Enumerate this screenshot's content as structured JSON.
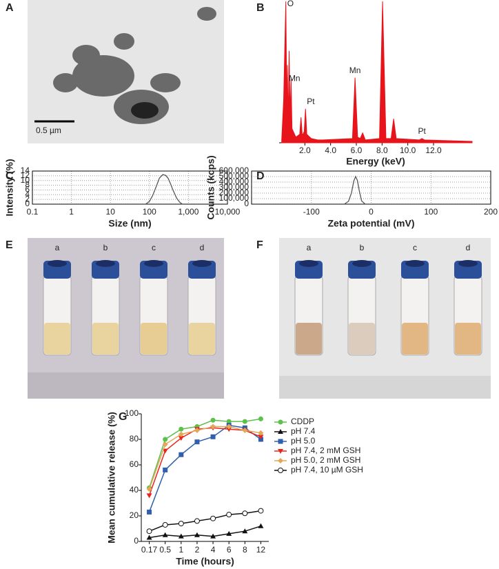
{
  "images": [
    {
      "label": "A",
      "scale_bar": "0.5 µm"
    },
    {
      "label": "E",
      "vials": [
        "a",
        "b",
        "c",
        "d"
      ]
    },
    {
      "label": "F",
      "vials": [
        "a",
        "b",
        "c",
        "d"
      ]
    }
  ],
  "chart_data": [
    {
      "type": "area",
      "label": "B",
      "xlabel": "Energy (keV)",
      "color": "#e8141c",
      "x": [
        0.2,
        0.35,
        0.52,
        0.6,
        0.64,
        0.7,
        0.78,
        0.85,
        0.93,
        1.0,
        1.3,
        1.6,
        1.7,
        1.8,
        1.95,
        2.05,
        2.15,
        2.5,
        3.0,
        3.4,
        5.7,
        5.9,
        6.1,
        6.3,
        6.49,
        6.7,
        7.8,
        8.04,
        8.3,
        8.7,
        8.9,
        9.1,
        10.9,
        11.1,
        11.3,
        15
      ],
      "values": [
        2,
        30,
        100,
        20,
        55,
        15,
        65,
        20,
        45,
        10,
        4,
        6,
        18,
        5,
        8,
        24,
        6,
        3,
        2,
        2,
        3,
        46,
        4,
        3,
        7,
        2,
        3,
        100,
        3,
        3,
        17,
        3,
        2,
        3,
        2,
        1
      ],
      "xlim": [
        0,
        15
      ],
      "ylim": [
        0,
        100
      ],
      "xticks": [
        {
          "value": 2,
          "label": "2.0"
        },
        {
          "value": 4,
          "label": "4.0"
        },
        {
          "value": 6,
          "label": "6.0"
        },
        {
          "value": 8,
          "label": "8.0"
        },
        {
          "value": 10,
          "label": "10.0"
        },
        {
          "value": 12,
          "label": "12.0"
        }
      ],
      "annotations": [
        "O",
        "Mn",
        "Pt",
        "Mn",
        "Pt"
      ]
    },
    {
      "type": "line",
      "label": "C",
      "xlabel": "Size (nm)",
      "ylabel": "Intensity (%)",
      "color": "#555555",
      "xscale": "log",
      "grid": true,
      "x": [
        80,
        100,
        120,
        150,
        180,
        220,
        260,
        300,
        350,
        400,
        500,
        600,
        700
      ],
      "values": [
        0,
        1.2,
        3.5,
        7.5,
        11,
        12.5,
        12.2,
        11,
        8.5,
        6,
        2.5,
        0.8,
        0
      ],
      "xlim": [
        0.1,
        10000
      ],
      "ylim": [
        0,
        14
      ],
      "xticks": [
        0.1,
        1,
        10,
        100,
        {
          "value": 1000,
          "label": "1,000"
        },
        {
          "value": 10000,
          "label": "10,000"
        }
      ],
      "yticks": [
        0,
        2,
        4,
        6,
        8,
        10,
        12,
        14
      ]
    },
    {
      "type": "line",
      "label": "D",
      "xlabel": "Zeta potential (mV)",
      "ylabel": "Counts (kcps)",
      "color": "#555555",
      "grid": true,
      "x": [
        -45,
        -38,
        -33,
        -29,
        -26,
        -23,
        -20,
        -16,
        -10
      ],
      "values": [
        0,
        50000,
        200000,
        420000,
        500000,
        430000,
        250000,
        60000,
        0
      ],
      "xlim": [
        -200,
        200
      ],
      "ylim": [
        0,
        600000
      ],
      "xticks": [
        -100,
        0,
        100,
        200
      ],
      "yticks": [
        0,
        {
          "value": 100000,
          "label": "100,000"
        },
        {
          "value": 200000,
          "label": "200,000"
        },
        {
          "value": 300000,
          "label": "300,000"
        },
        {
          "value": 400000,
          "label": "400,000"
        },
        {
          "value": 500000,
          "label": "500,000"
        },
        {
          "value": 600000,
          "label": "600,000"
        }
      ]
    },
    {
      "type": "category-line",
      "label": "G",
      "xlabel": "Time (hours)",
      "ylabel": "Mean cumulative release (%)",
      "categories": [
        "0.17",
        "0.5",
        "1",
        "2",
        "4",
        "6",
        "8",
        "12"
      ],
      "ylim": [
        0,
        100
      ],
      "yticks": [
        0,
        20,
        40,
        60,
        80,
        100
      ],
      "series": [
        {
          "name": "CDDP",
          "color": "#5cc04a",
          "marker": "circle",
          "values": [
            42,
            80,
            88,
            90,
            95,
            94,
            94,
            96
          ]
        },
        {
          "name": "pH 7.4",
          "color": "#111111",
          "marker": "triangle",
          "values": [
            3,
            5,
            4,
            5,
            4,
            6,
            8,
            12
          ]
        },
        {
          "name": "pH 5.0",
          "color": "#2f5fad",
          "marker": "square",
          "values": [
            23,
            56,
            68,
            78,
            82,
            91,
            89,
            80
          ]
        },
        {
          "name": "pH 7.4, 2 mM GSH",
          "color": "#e8241c",
          "marker": "triangle-down",
          "values": [
            36,
            71,
            81,
            88,
            89,
            88,
            87,
            82
          ]
        },
        {
          "name": "pH 5.0, 2 mM GSH",
          "color": "#e3a857",
          "marker": "diamond",
          "values": [
            41,
            76,
            84,
            87,
            90,
            90,
            87,
            85
          ]
        },
        {
          "name": "pH 7.4, 10 µM GSH",
          "color": "#111111",
          "marker": "open-circle",
          "values": [
            8,
            13,
            14,
            16,
            18,
            21,
            22,
            24
          ]
        }
      ]
    }
  ]
}
